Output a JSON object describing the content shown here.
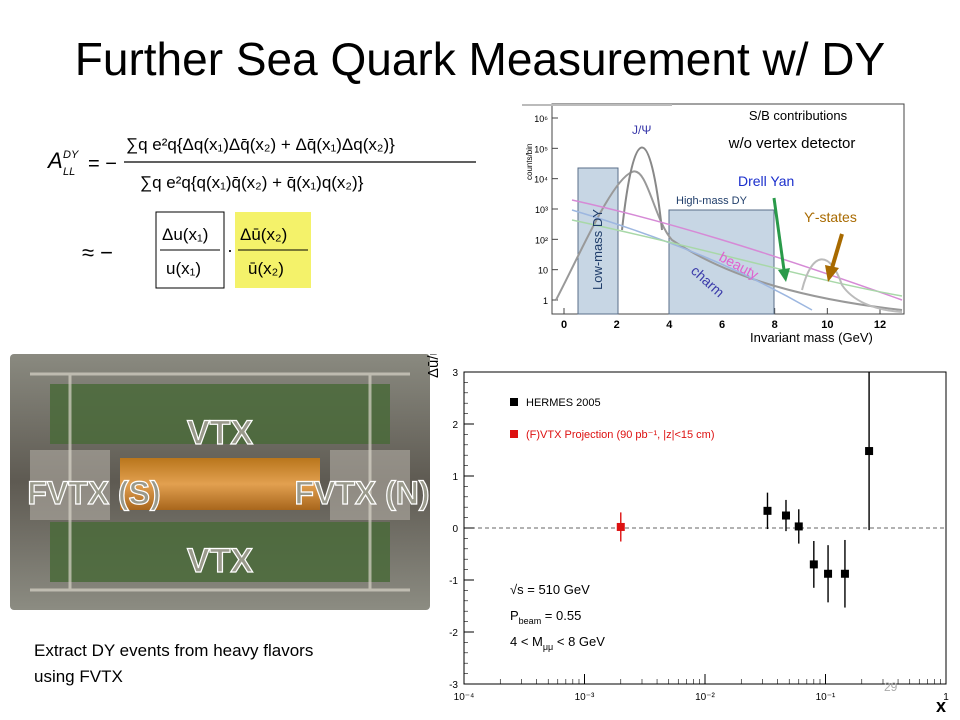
{
  "slide": {
    "title": "Further Sea Quark Measurement w/ DY",
    "caption_line1": "Extract DY events from heavy flavors",
    "caption_line2": "using FVTX",
    "page_number": "29"
  },
  "equation": {
    "lhs": "A",
    "lhs_sup": "DY",
    "lhs_sub": "LL",
    "numerator": "∑q e²q{Δq(x₁)Δq̄(x₂) + Δq̄(x₁)Δq(x₂)}",
    "denominator": "∑q e²q{q(x₁)q̄(x₂) + q̄(x₁)q(x₂)}",
    "approx_num1": "Δu(x₁)",
    "approx_den1": "u(x₁)",
    "approx_num2": "Δū(x₂)",
    "approx_den2": "ū(x₂)",
    "highlight_color": "#f4f26a"
  },
  "detector_photo": {
    "labels": [
      "VTX",
      "FVTX (S)",
      "FVTX (N)",
      "VTX"
    ]
  },
  "mass_spectrum": {
    "header_line1": "S/B contributions",
    "header_line2": "w/o vertex detector",
    "ylabel": "counts/bin",
    "xlabel": "Invariant mass (GeV)",
    "y_ticks": [
      "10⁶",
      "10⁵",
      "10⁴",
      "10³",
      "10²",
      "10",
      "1"
    ],
    "x_ticks": [
      "0",
      "2",
      "4",
      "6",
      "8",
      "10",
      "12"
    ],
    "labels": {
      "jpsi": "J/Ψ",
      "low_mass": "Low-mass DY",
      "high_mass": "High-mass DY",
      "drell_yan": "Drell Yan",
      "upsilon": "ϒ-states",
      "charm": "charm",
      "beauty": "beauty"
    },
    "colors": {
      "drell_yan": "#1a2ecc",
      "upsilon": "#a86a00",
      "charm": "#3a3aaa",
      "beauty": "#e060d0",
      "arrow_green": "#2a9a4a",
      "arrow_brown": "#a86a00"
    }
  },
  "chart_data": {
    "type": "scatter",
    "x_scale": "log",
    "xlim": [
      0.0001,
      1
    ],
    "ylim": [
      -3,
      3
    ],
    "xlabel": "x",
    "ylabel": "Δū/ū",
    "x_ticks": [
      "10⁻⁴",
      "10⁻³",
      "10⁻²",
      "10⁻¹",
      "1"
    ],
    "y_ticks": [
      "-3",
      "-2",
      "-1",
      "0",
      "1",
      "2",
      "3"
    ],
    "legend": [
      {
        "name": "HERMES 2005",
        "color": "#000000"
      },
      {
        "name": "(F)VTX Projection (90 pb⁻¹, |z|<15 cm)",
        "color": "#dd1111"
      }
    ],
    "series": [
      {
        "name": "HERMES 2005",
        "color": "#000000",
        "points": [
          {
            "x": 0.033,
            "y": 0.33,
            "err": 0.35
          },
          {
            "x": 0.047,
            "y": 0.24,
            "err": 0.3
          },
          {
            "x": 0.06,
            "y": 0.03,
            "err": 0.33
          },
          {
            "x": 0.08,
            "y": -0.7,
            "err": 0.45
          },
          {
            "x": 0.105,
            "y": -0.88,
            "err": 0.55
          },
          {
            "x": 0.145,
            "y": -0.88,
            "err": 0.65
          },
          {
            "x": 0.23,
            "y": 1.48,
            "err": 1.52
          }
        ]
      },
      {
        "name": "(F)VTX Projection (90 pb⁻¹, |z|<15 cm)",
        "color": "#dd1111",
        "points": [
          {
            "x": 0.002,
            "y": 0.02,
            "err": 0.28
          }
        ]
      }
    ],
    "annotations": {
      "line1": "√s = 510 GeV",
      "line2_main": "P",
      "line2_sub": "beam",
      "line2_rest": " = 0.55",
      "line3_pre": "4 < M",
      "line3_sub": "μμ",
      "line3_post": " < 8 GeV"
    },
    "zero_line": "dashed"
  }
}
